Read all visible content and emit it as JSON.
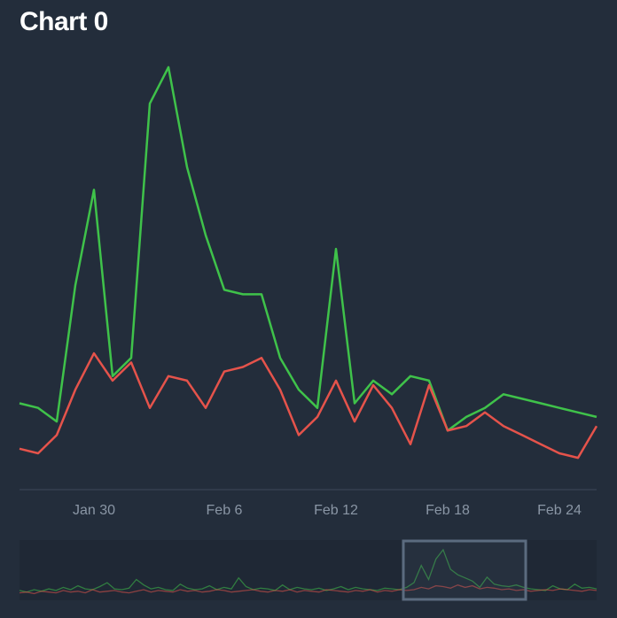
{
  "title": "Chart 0",
  "colors": {
    "background": "#232d3b",
    "series_green": "#3fc24a",
    "series_red": "#e5534b",
    "axis": "#3c4858",
    "tick_text": "#8a96a5",
    "navigator_bg": "#1f2835",
    "navigator_window": "#5b6b7f"
  },
  "chart_data": {
    "type": "line",
    "title": "Chart 0",
    "xlabel": "",
    "ylabel": "",
    "grid": false,
    "legend": "none",
    "x_ticks": [
      "Jan 30",
      "Feb 6",
      "Feb 12",
      "Feb 18",
      "Feb 24"
    ],
    "x": [
      "Jan 26",
      "Jan 27",
      "Jan 28",
      "Jan 29",
      "Jan 30",
      "Jan 31",
      "Feb 1",
      "Feb 2",
      "Feb 3",
      "Feb 4",
      "Feb 5",
      "Feb 6",
      "Feb 7",
      "Feb 8",
      "Feb 9",
      "Feb 10",
      "Feb 11",
      "Feb 12",
      "Feb 13",
      "Feb 14",
      "Feb 15",
      "Feb 16",
      "Feb 17",
      "Feb 18",
      "Feb 19",
      "Feb 20",
      "Feb 21",
      "Feb 22",
      "Feb 23",
      "Feb 24",
      "Feb 25",
      "Feb 26"
    ],
    "ylim": [
      0,
      100
    ],
    "series": [
      {
        "color": "#3fc24a",
        "values": [
          19,
          18,
          15,
          45,
          66,
          25,
          29,
          85,
          93,
          71,
          56,
          44,
          43,
          43,
          29,
          22,
          18,
          53,
          19,
          24,
          21,
          25,
          24,
          13,
          16,
          18,
          21,
          20,
          19,
          18,
          17,
          16
        ]
      },
      {
        "color": "#e5534b",
        "values": [
          9,
          8,
          12,
          22,
          30,
          24,
          28,
          18,
          25,
          24,
          18,
          26,
          27,
          29,
          22,
          12,
          16,
          24,
          15,
          23,
          18,
          10,
          23,
          13,
          14,
          17,
          14,
          12,
          10,
          8,
          7,
          14
        ]
      }
    ]
  }
}
